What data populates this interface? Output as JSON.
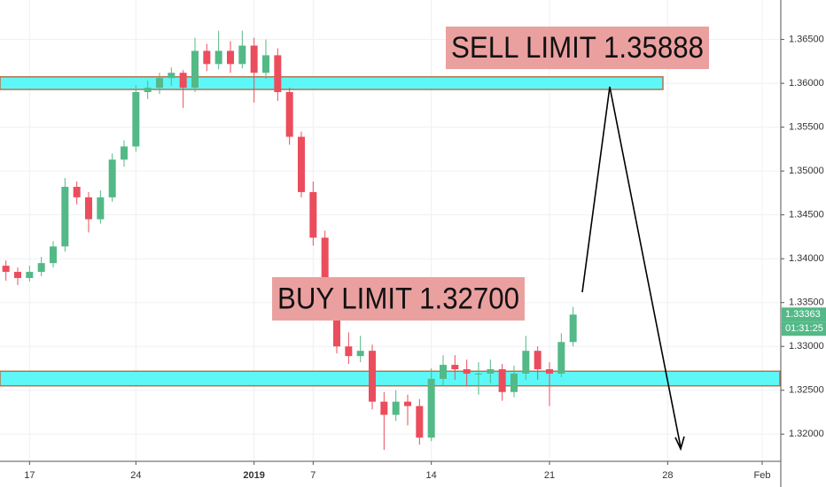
{
  "chart_data": {
    "type": "candlestick",
    "categories": [
      null,
      null,
      "17",
      null,
      null,
      null,
      null,
      null,
      null,
      null,
      null,
      "24",
      null,
      null,
      null,
      null,
      null,
      null,
      null,
      null,
      null,
      "2019",
      null,
      null,
      null,
      null,
      "7",
      null,
      null,
      null,
      null,
      null,
      null,
      null,
      null,
      null,
      "14",
      null,
      null,
      null,
      null,
      null,
      null,
      null,
      null,
      null,
      "21",
      null,
      null,
      null,
      null,
      null,
      null,
      null,
      null,
      null,
      "28",
      null,
      null,
      null,
      null,
      null,
      null,
      null,
      "Feb",
      null
    ],
    "open": [
      1.3392,
      1.3385,
      1.3378,
      1.3385,
      1.3395,
      1.3414,
      1.3482,
      1.347,
      1.3445,
      1.347,
      1.3513,
      1.3528,
      1.359,
      1.3595,
      1.3606,
      1.3612,
      1.3595,
      1.3637,
      1.3622,
      1.3637,
      1.3622,
      1.3643,
      1.3612,
      1.3632,
      1.359,
      1.3539,
      1.3476,
      1.3424,
      1.3362,
      1.33,
      1.3289,
      1.3295,
      1.3237,
      1.3222,
      1.3237,
      1.3232,
      1.3196,
      1.3263,
      1.3279,
      1.3274,
      1.3269,
      1.3269,
      1.3274,
      1.3248,
      1.3269,
      1.3295,
      1.3274,
      1.3269,
      1.3305,
      null,
      null,
      null,
      null,
      null,
      null,
      null,
      null,
      null,
      null,
      null,
      null,
      null,
      null,
      null,
      null,
      null
    ],
    "high": [
      1.3398,
      1.339,
      1.3392,
      1.3402,
      1.342,
      1.3492,
      1.3488,
      1.3476,
      1.3478,
      1.352,
      1.3535,
      1.3598,
      1.3603,
      1.3612,
      1.3618,
      1.3615,
      1.3652,
      1.3645,
      1.366,
      1.3648,
      1.366,
      1.3652,
      1.365,
      1.364,
      1.3595,
      1.3545,
      1.3488,
      1.3432,
      1.337,
      1.3316,
      1.3312,
      1.3302,
      1.3248,
      1.325,
      1.3245,
      1.324,
      1.3275,
      1.329,
      1.329,
      1.3285,
      1.3282,
      1.3285,
      1.328,
      1.3278,
      1.3312,
      1.33,
      1.3282,
      1.3315,
      1.3345,
      null,
      null,
      null,
      null,
      null,
      null,
      null,
      null,
      null,
      null,
      null,
      null,
      null,
      null,
      null,
      null,
      null
    ],
    "low": [
      1.3375,
      1.337,
      1.3374,
      1.338,
      1.339,
      1.3408,
      1.3462,
      1.343,
      1.344,
      1.3465,
      1.3505,
      1.3522,
      1.3582,
      1.3588,
      1.3597,
      1.3572,
      1.359,
      1.3614,
      1.3616,
      1.3612,
      1.3617,
      1.3578,
      1.3605,
      1.358,
      1.353,
      1.347,
      1.3415,
      1.3355,
      1.3292,
      1.328,
      1.3282,
      1.3228,
      1.3182,
      1.3215,
      1.321,
      1.3188,
      1.3192,
      1.3255,
      1.3262,
      1.3255,
      1.3245,
      1.3258,
      1.3238,
      1.3242,
      1.3262,
      1.3262,
      1.3232,
      1.3265,
      1.33,
      null,
      null,
      null,
      null,
      null,
      null,
      null,
      null,
      null,
      null,
      null,
      null,
      null,
      null,
      null,
      null,
      null
    ],
    "close": [
      1.3385,
      1.3378,
      1.3385,
      1.3395,
      1.3414,
      1.3482,
      1.347,
      1.3445,
      1.347,
      1.3513,
      1.3528,
      1.359,
      1.3595,
      1.3606,
      1.3612,
      1.3595,
      1.3637,
      1.3622,
      1.3637,
      1.3622,
      1.3643,
      1.3612,
      1.3632,
      1.359,
      1.3539,
      1.3476,
      1.3424,
      1.3362,
      1.33,
      1.3289,
      1.3295,
      1.3237,
      1.3222,
      1.3237,
      1.3232,
      1.3196,
      1.3263,
      1.3279,
      1.3274,
      1.3269,
      1.3269,
      1.3274,
      1.3248,
      1.3269,
      1.3295,
      1.3274,
      1.3269,
      1.3305,
      1.33363,
      null,
      null,
      null,
      null,
      null,
      null,
      null,
      null,
      null,
      null,
      null,
      null,
      null,
      null,
      null,
      null,
      null
    ],
    "up_color": "#53b987",
    "down_color": "#eb4d5c",
    "ylim": [
      1.317,
      1.3695
    ],
    "yticks": [
      {
        "value": 1.365,
        "label": "1.36500"
      },
      {
        "value": 1.36,
        "label": "1.36000"
      },
      {
        "value": 1.355,
        "label": "1.35500"
      },
      {
        "value": 1.35,
        "label": "1.35000"
      },
      {
        "value": 1.345,
        "label": "1.34500"
      },
      {
        "value": 1.34,
        "label": "1.34000"
      },
      {
        "value": 1.335,
        "label": "1.33500"
      },
      {
        "value": 1.33,
        "label": "1.33000"
      },
      {
        "value": 1.325,
        "label": "1.32500"
      },
      {
        "value": 1.32,
        "label": "1.32000"
      }
    ],
    "grid": true,
    "last_price": {
      "value": 1.33363,
      "label": "1.33363"
    },
    "countdown": "01:31:25",
    "zones": [
      {
        "ylim": [
          1.3593,
          1.36074
        ],
        "color": "#5ef7f7"
      },
      {
        "ylim": [
          1.32551,
          1.32717
        ],
        "color": "#5ef7f7"
      }
    ],
    "annotations": [
      "SELL LIMIT 1.35888",
      "BUY LIMIT 1.32700"
    ]
  }
}
